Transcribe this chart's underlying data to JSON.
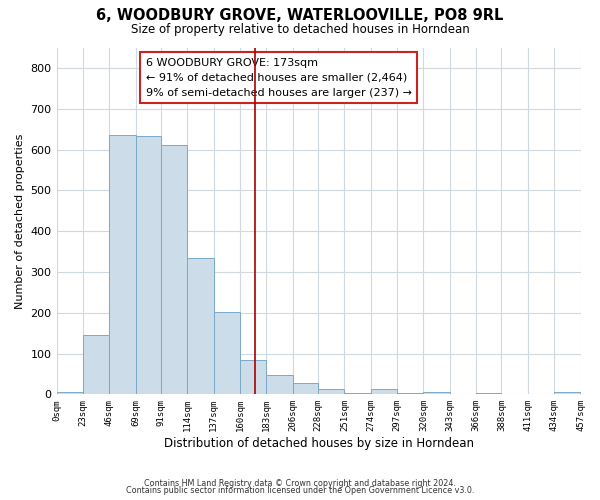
{
  "title": "6, WOODBURY GROVE, WATERLOOVILLE, PO8 9RL",
  "subtitle": "Size of property relative to detached houses in Horndean",
  "xlabel": "Distribution of detached houses by size in Horndean",
  "ylabel": "Number of detached properties",
  "bin_edges": [
    0,
    23,
    46,
    69,
    91,
    114,
    137,
    160,
    183,
    206,
    228,
    251,
    274,
    297,
    320,
    343,
    366,
    388,
    411,
    434,
    457
  ],
  "counts": [
    5,
    145,
    635,
    632,
    610,
    333,
    201,
    85,
    48,
    27,
    14,
    3,
    12,
    3,
    5,
    0,
    3,
    0,
    0,
    5
  ],
  "bar_color": "#ccdce8",
  "bar_edge_color": "#7aaac8",
  "vline_x": 173,
  "vline_color": "#aa0000",
  "annotation_text": "6 WOODBURY GROVE: 173sqm\n← 91% of detached houses are smaller (2,464)\n9% of semi-detached houses are larger (237) →",
  "annotation_box_color": "#ffffff",
  "annotation_box_edge": "#cc2222",
  "ylim": [
    0,
    850
  ],
  "yticks": [
    0,
    100,
    200,
    300,
    400,
    500,
    600,
    700,
    800
  ],
  "footer_line1": "Contains HM Land Registry data © Crown copyright and database right 2024.",
  "footer_line2": "Contains public sector information licensed under the Open Government Licence v3.0.",
  "bg_color": "#ffffff",
  "plot_bg_color": "#ffffff",
  "grid_color": "#d0d8e0"
}
